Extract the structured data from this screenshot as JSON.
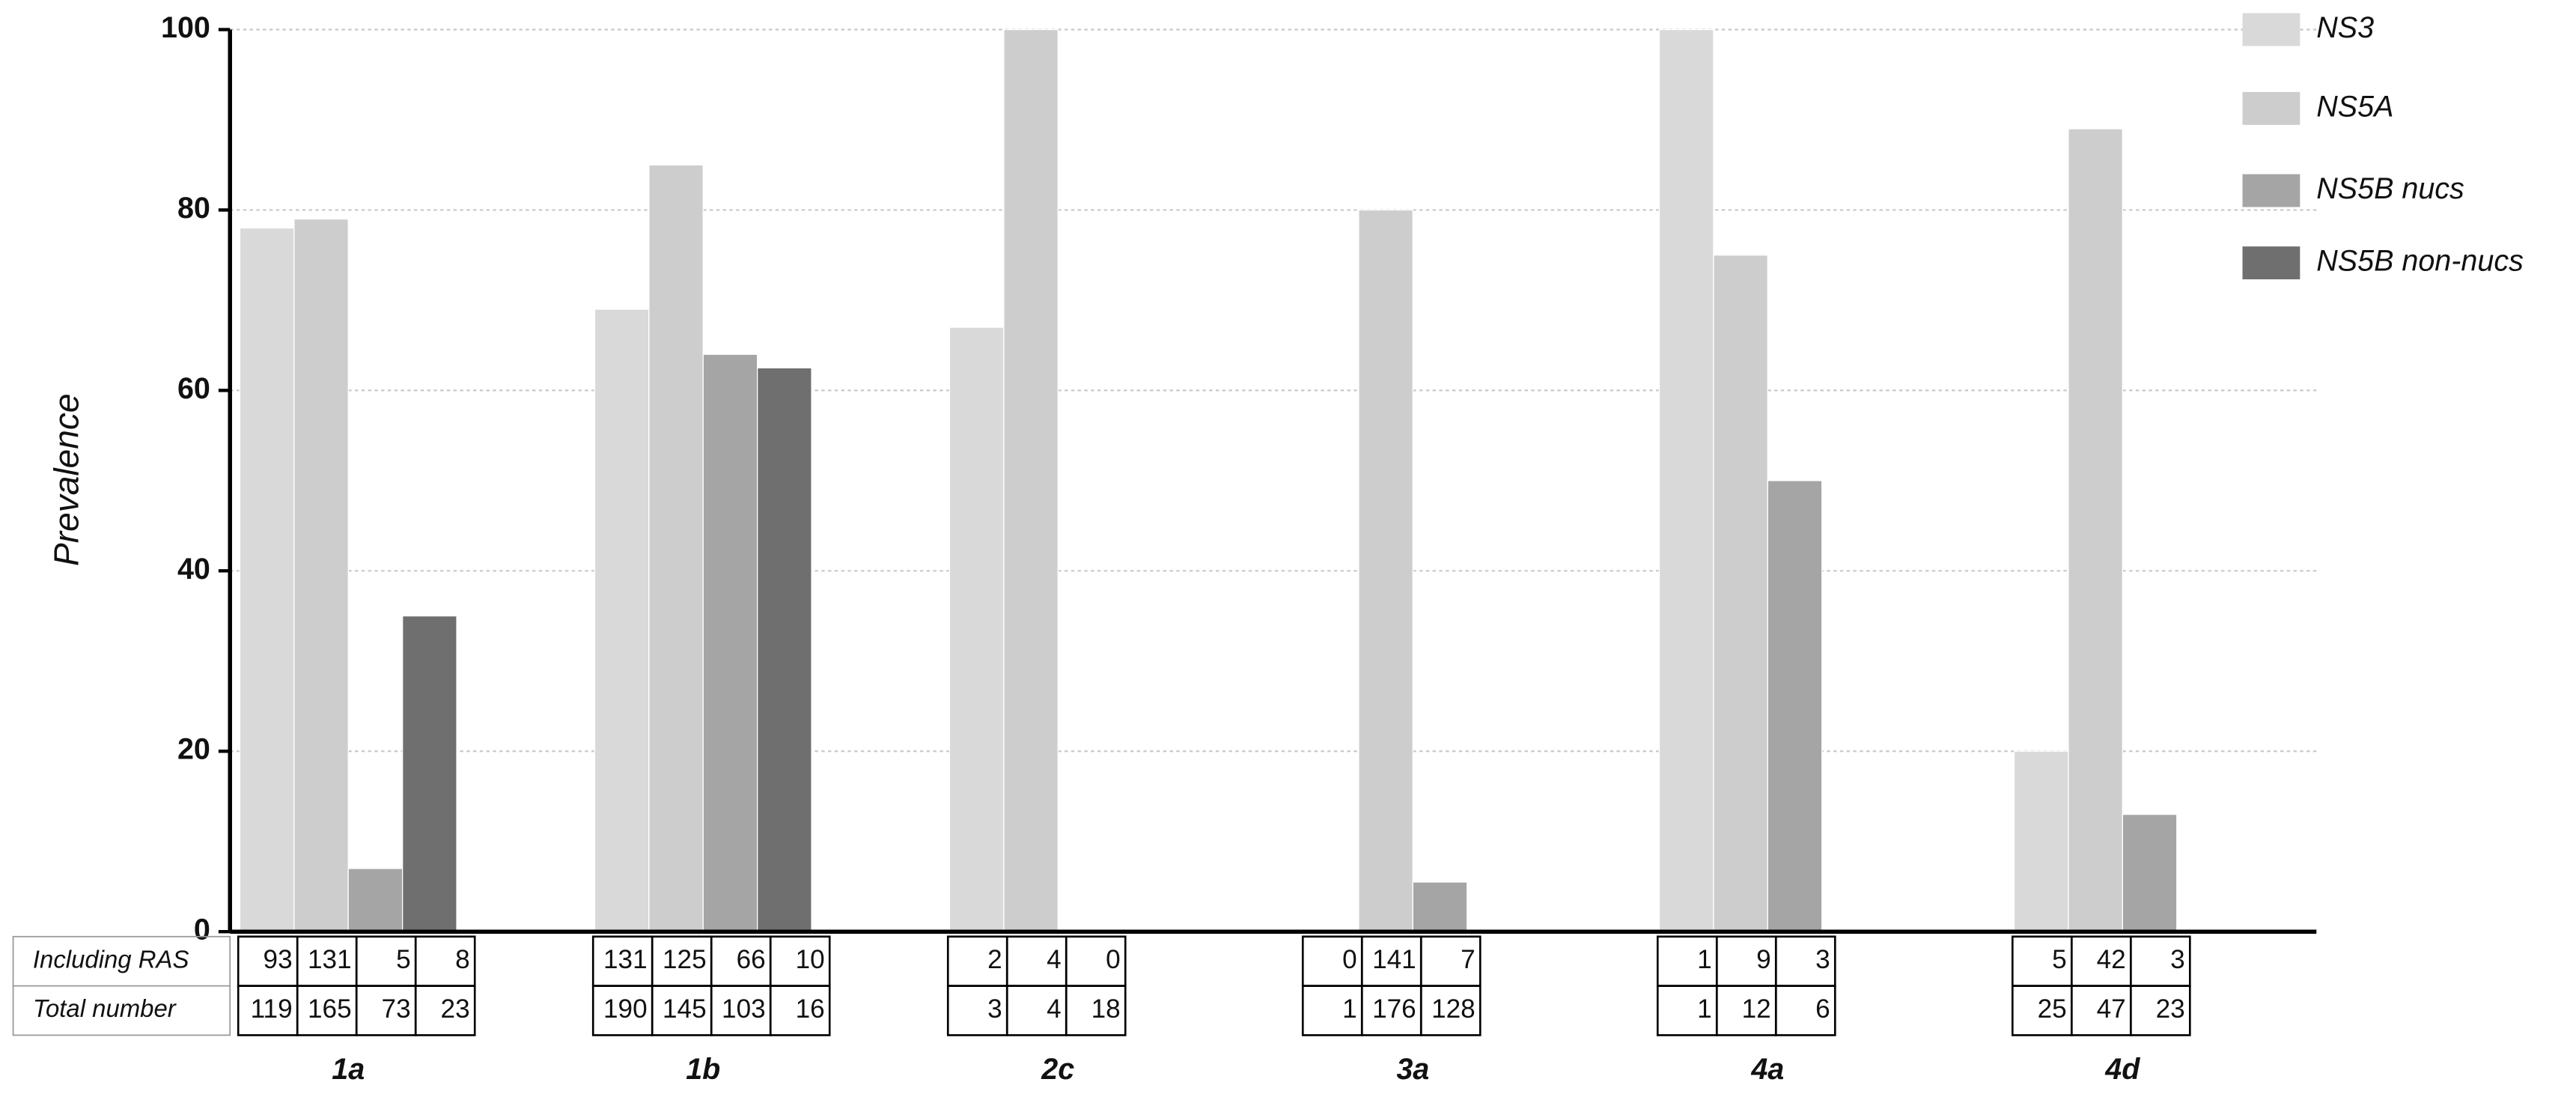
{
  "chart_data": {
    "type": "bar",
    "y_label": "Prevalence",
    "categories": [
      "1a",
      "1b",
      "2c",
      "3a",
      "4a",
      "4d"
    ],
    "series": [
      {
        "name": "NS3",
        "color": "#d9d9d9",
        "values": [
          78,
          69,
          67,
          0,
          100,
          20
        ]
      },
      {
        "name": "NS5A",
        "color": "#cdcdcd",
        "values": [
          79,
          85,
          100,
          80,
          75,
          89
        ]
      },
      {
        "name": "NS5B nucs",
        "color": "#a5a5a5",
        "values": [
          7,
          64,
          0,
          5.5,
          50,
          13
        ]
      },
      {
        "name": "NS5B non-nucs",
        "color": "#6f6f6f",
        "values": [
          35,
          62.5,
          null,
          null,
          null,
          null
        ]
      }
    ],
    "ylim": [
      0,
      100
    ],
    "yticks": [
      0,
      20,
      40,
      60,
      80,
      100
    ],
    "grid": true,
    "legend": "top-right",
    "table": {
      "row_labels": [
        "Including RAS",
        "Total number"
      ],
      "including_ras": [
        [
          93,
          131,
          5,
          8
        ],
        [
          131,
          125,
          66,
          10
        ],
        [
          2,
          4,
          0
        ],
        [
          0,
          141,
          7
        ],
        [
          1,
          9,
          3
        ],
        [
          5,
          42,
          3
        ]
      ],
      "total_number": [
        [
          119,
          165,
          73,
          23
        ],
        [
          190,
          145,
          103,
          16
        ],
        [
          3,
          4,
          18
        ],
        [
          1,
          176,
          128
        ],
        [
          1,
          12,
          6
        ],
        [
          25,
          47,
          23
        ]
      ]
    }
  }
}
